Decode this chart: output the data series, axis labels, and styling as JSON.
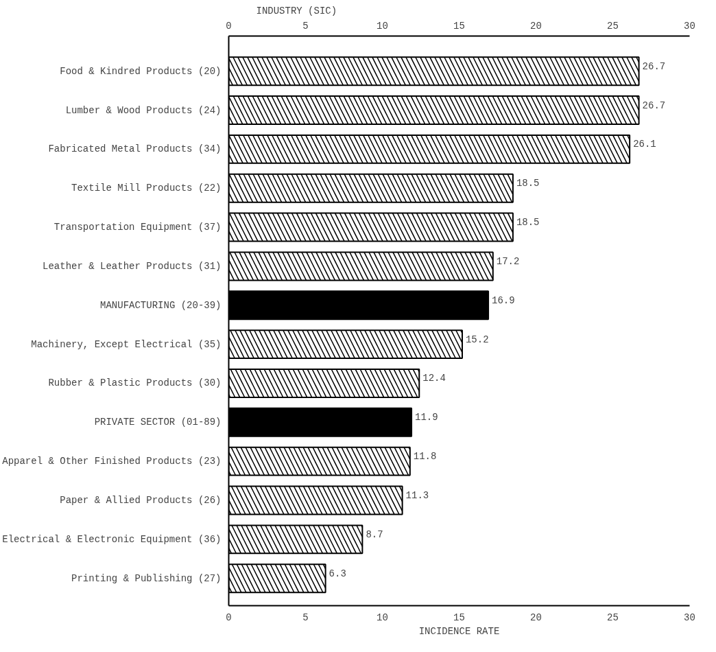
{
  "chart_data": {
    "type": "bar",
    "orientation": "horizontal",
    "ylabel": "INDUSTRY (SIC)",
    "xlabel": "INCIDENCE RATE",
    "categories": [
      "Food & Kindred Products (20)",
      "Lumber & Wood Products (24)",
      "Fabricated Metal Products (34)",
      "Textile Mill Products (22)",
      "Transportation Equipment (37)",
      "Leather & Leather Products (31)",
      "MANUFACTURING (20-39)",
      "Machinery, Except Electrical (35)",
      "Rubber & Plastic Products (30)",
      "PRIVATE SECTOR (01-89)",
      "Apparel & Other Finished Products (23)",
      "Paper & Allied Products (26)",
      "Electrical & Electronic Equipment (36)",
      "Printing & Publishing (27)"
    ],
    "values": [
      26.7,
      26.7,
      26.1,
      18.5,
      18.5,
      17.2,
      16.9,
      15.2,
      12.4,
      11.9,
      11.8,
      11.3,
      8.7,
      6.3
    ],
    "colors": [
      "#ffffff",
      "#ffffff",
      "#ffffff",
      "#ffffff",
      "#ffffff",
      "#ffffff",
      "#000000",
      "#ffffff",
      "#ffffff",
      "#000000",
      "#ffffff",
      "#ffffff",
      "#ffffff",
      "#ffffff"
    ],
    "xlim": [
      0,
      30
    ],
    "xticks": [
      0,
      5,
      10,
      15,
      20,
      25,
      30
    ],
    "x2lim": [
      0,
      30
    ],
    "x2ticks": [
      0,
      5,
      10,
      15,
      20,
      25,
      30
    ],
    "data_labels": true,
    "grid": false
  }
}
